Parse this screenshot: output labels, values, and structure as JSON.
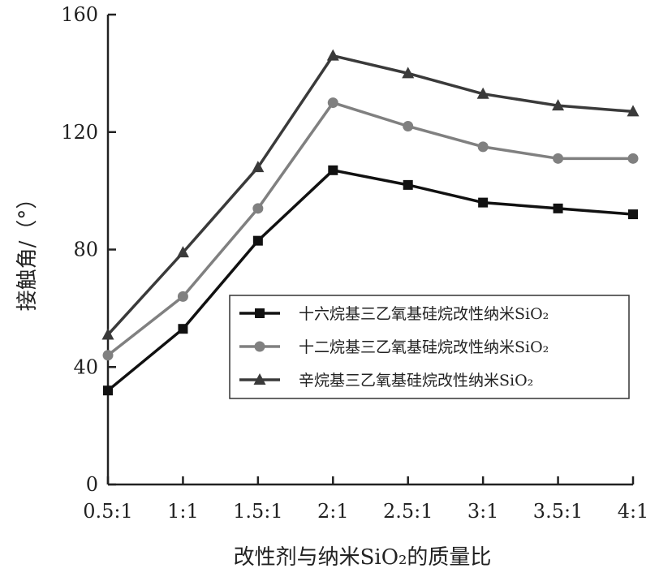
{
  "chart_data": {
    "type": "line",
    "categories": [
      "0.5:1",
      "1:1",
      "1.5:1",
      "2:1",
      "2.5:1",
      "3:1",
      "3.5:1",
      "4:1"
    ],
    "series": [
      {
        "name": "十六烷基三乙氧基硅烷改性纳米SiO₂",
        "marker": "square",
        "color": "#111111",
        "values": [
          32,
          53,
          83,
          107,
          102,
          96,
          94,
          92
        ]
      },
      {
        "name": "十二烷基三乙氧基硅烷改性纳米SiO₂",
        "marker": "circle",
        "color": "#808080",
        "values": [
          44,
          64,
          94,
          130,
          122,
          115,
          111,
          111
        ]
      },
      {
        "name": "辛烷基三乙氧基硅烷改性纳米SiO₂",
        "marker": "triangle",
        "color": "#3a3a3a",
        "values": [
          51,
          79,
          108,
          146,
          140,
          133,
          129,
          127
        ]
      }
    ],
    "xlabel": "改性剂与纳米SiO₂的质量比",
    "ylabel": "接触角/（°）",
    "ylim": [
      0,
      160
    ],
    "yticks": [
      0,
      40,
      80,
      120,
      160
    ],
    "grid": false,
    "legend_position": "right-middle"
  }
}
